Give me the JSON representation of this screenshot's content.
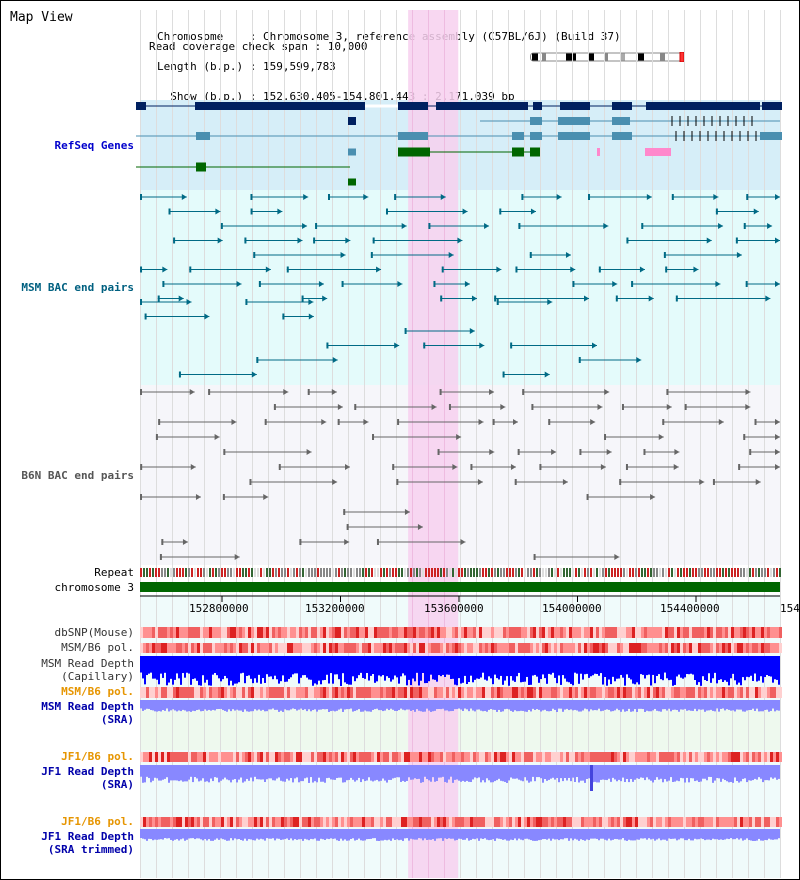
{
  "title": "Map View",
  "info": {
    "chromosome_line": "Chromosome    : Chromosome 3, reference assembly (C57BL/6J) (Build 37)",
    "length_line": "Length (b.p.) : 159,599,783",
    "show_line": "  Show (b.p.) : 152,630,405-154,801,443 : 2,171,039 bp",
    "coverage_line": "Read coverage check span : 10,000"
  },
  "tracks": {
    "refseq": "RefSeq Genes",
    "msm_bac": "MSM BAC end pairs",
    "b6n_bac": "B6N BAC end pairs",
    "repeat": "Repeat",
    "chromosome": "chromosome 3",
    "dbsnp": "dbSNP(Mouse)",
    "msm_b6_pol_1": "MSM/B6 pol.",
    "msm_depth_cap_1": "MSM Read Depth",
    "msm_depth_cap_2": "(Capillary)",
    "msm_b6_pol_2": "MSM/B6 pol.",
    "msm_depth_sra_1": "MSM Read Depth",
    "msm_depth_sra_2": "(SRA)",
    "jf1_b6_pol_1": "JF1/B6 pol.",
    "jf1_depth_sra_1": "JF1 Read Depth",
    "jf1_depth_sra_2": "(SRA)",
    "jf1_b6_pol_2": "JF1/B6 pol.",
    "jf1_depth_trim_1": "JF1 Read Depth",
    "jf1_depth_trim_2": "(SRA trimmed)"
  },
  "axis": {
    "ticks": [
      "152800000",
      "153200000",
      "153600000",
      "154000000",
      "154400000",
      "154"
    ],
    "range_bp": [
      152630405,
      154801443
    ]
  },
  "highlight_range_bp": [
    153540000,
    153710000
  ],
  "colors": {
    "refseq_bg": "#d6eef8",
    "msm_bg": "#e4fbfb",
    "b6n_bg": "#f6f6fa",
    "highlight": "#f7d0ee",
    "gene_navy": "#002060",
    "gene_teal": "#4a8fb0",
    "gene_green": "#006600",
    "gene_pink": "#ff88cc",
    "msm_pair": "#006a85",
    "b6n_pair": "#666666",
    "chromosome_bar": "#006600",
    "depth_blue": "#0000ff",
    "depth_light": "#8888ff",
    "pol_red": "#ee3333"
  }
}
